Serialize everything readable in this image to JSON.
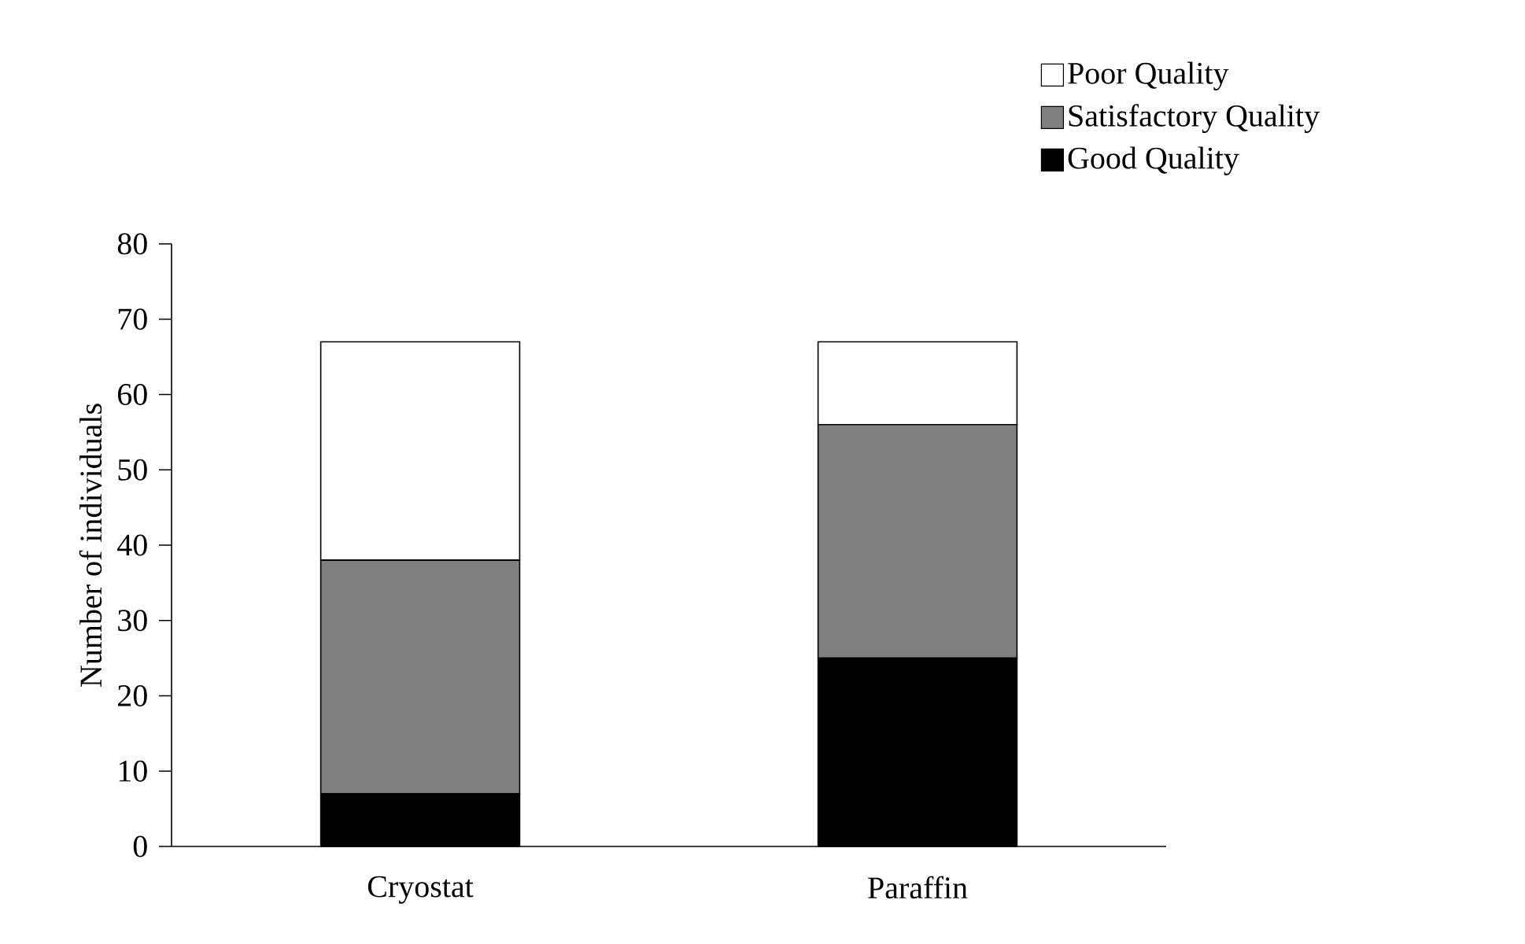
{
  "chart_data": {
    "type": "bar",
    "stacked": true,
    "ylabel": "Number of individuals",
    "categories": [
      "Cryostat",
      "Paraffin"
    ],
    "series": [
      {
        "name": "Good Quality",
        "color": "#000000",
        "values": [
          7,
          25
        ]
      },
      {
        "name": "Satisfactory Quality",
        "color": "#808080",
        "values": [
          31,
          31
        ]
      },
      {
        "name": "Poor Quality",
        "color": "#ffffff",
        "values": [
          29,
          11
        ]
      }
    ],
    "ylim": [
      0,
      80
    ],
    "yticks": [
      0,
      10,
      20,
      30,
      40,
      50,
      60,
      70,
      80
    ],
    "legend": "top right"
  }
}
